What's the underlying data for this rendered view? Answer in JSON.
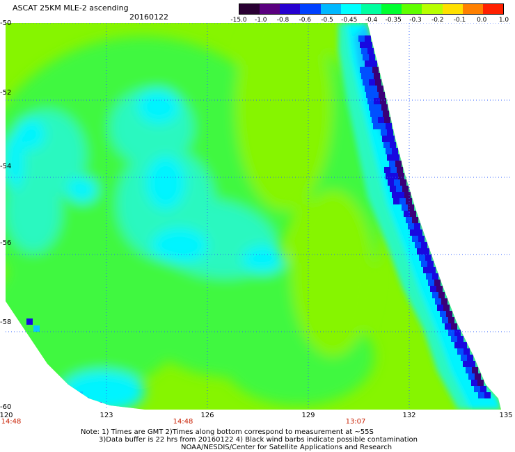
{
  "header": {
    "title": "ASCAT 25KM MLE-2 ascending",
    "date": "20160122"
  },
  "colorbar": {
    "labels": [
      "-15.0",
      "-1.0",
      "-0.8",
      "-0.6",
      "-0.5",
      "-0.45",
      "-0.4",
      "-0.35",
      "-0.3",
      "-0.2",
      "-0.1",
      "0.0",
      "1.0"
    ],
    "colors": [
      "#2a0033",
      "#5a007f",
      "#2600d0",
      "#0040ff",
      "#00b8ff",
      "#00ffff",
      "#00ffa0",
      "#00ff30",
      "#60ff00",
      "#b8ff00",
      "#ffe000",
      "#ff8000",
      "#ff2000"
    ]
  },
  "map": {
    "lat_labels": [
      "-50",
      "-52",
      "-54",
      "-56",
      "-58",
      "-60"
    ],
    "lon_labels": [
      "120",
      "123",
      "126",
      "129",
      "132",
      "135"
    ],
    "time_labels": [
      "14:48",
      "14:48",
      "13:07"
    ],
    "swath_palette": {
      "background": "#86f500",
      "light_green": "#a8ff00",
      "green": "#40f840",
      "aqua": "#2af8c0",
      "cyan": "#00f4ff",
      "light_blue": "#0cc8ff",
      "blue": "#0050ff",
      "deep_blue": "#1808e0",
      "purple": "#3a0078"
    }
  },
  "notes": {
    "line1": "Note: 1) Times are GMT 2)Times along bottom correspond to measurement at ~55S",
    "line2": "3)Data buffer is 22 hrs from 20160122 4) Black wind barbs indicate possible contamination",
    "line3": "NOAA/NESDIS/Center for Satellite Applications and Research"
  }
}
